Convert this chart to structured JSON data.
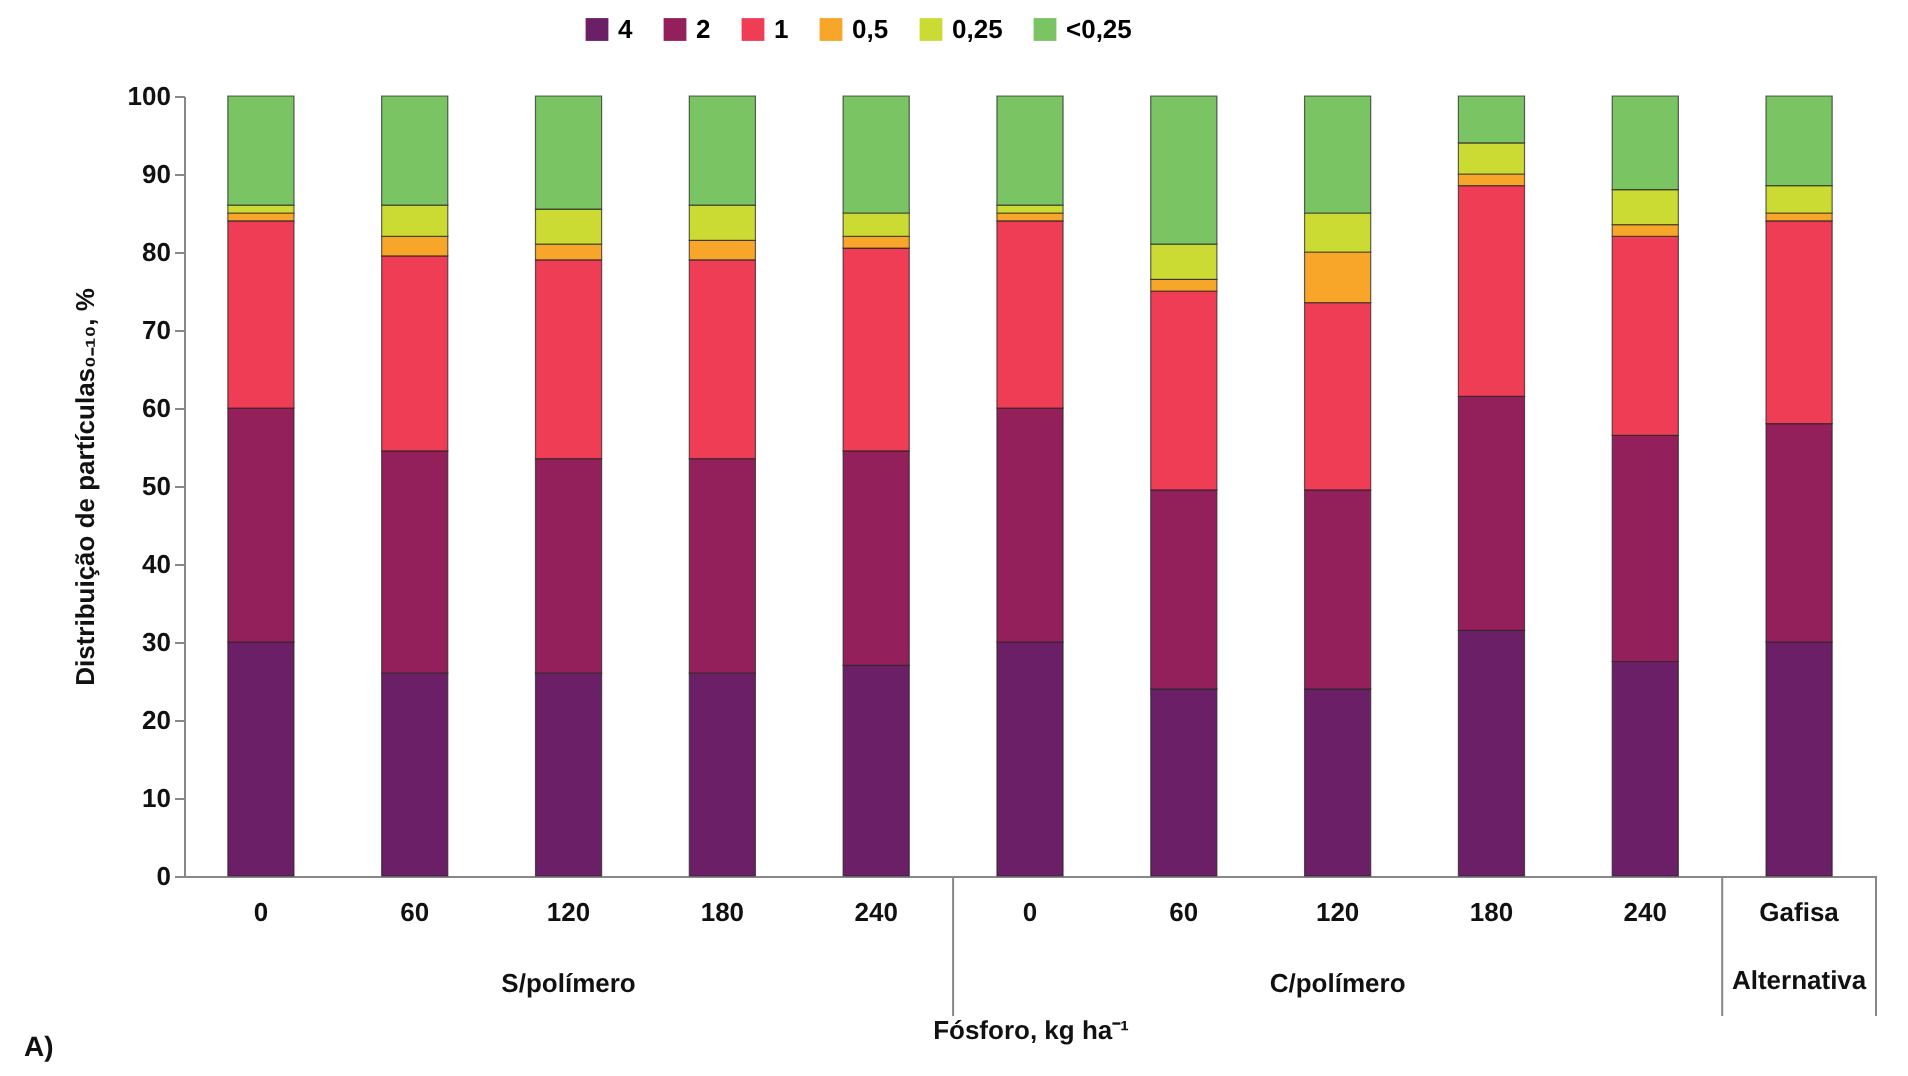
{
  "chart_data": {
    "type": "bar",
    "stacked": true,
    "xlabel": "Fósforo, kg ha⁻¹",
    "ylabel": "Distribuição de partículas₀₋₁₀, %",
    "categories": [
      "0",
      "60",
      "120",
      "180",
      "240",
      "0",
      "60",
      "120",
      "180",
      "240",
      "Gafisa Alternativa"
    ],
    "series": [
      {
        "name": "4",
        "color": "#6b1f66",
        "values": [
          30,
          26,
          26,
          26,
          27,
          30,
          24,
          24,
          31.5,
          27.5,
          30
        ]
      },
      {
        "name": "2",
        "color": "#93205a",
        "values": [
          30,
          28.5,
          27.5,
          27.5,
          27.5,
          30,
          25.5,
          25.5,
          30,
          29,
          28
        ]
      },
      {
        "name": "1",
        "color": "#ee3d55",
        "values": [
          24,
          25,
          25.5,
          25.5,
          26,
          24,
          25.5,
          24,
          27,
          25.5,
          26
        ]
      },
      {
        "name": "0,5",
        "color": "#f8a629",
        "values": [
          1,
          2.5,
          2,
          2.5,
          1.5,
          1,
          1.5,
          6.5,
          1.5,
          1.5,
          1
        ]
      },
      {
        "name": "0,25",
        "color": "#ccdb33",
        "values": [
          1,
          4,
          4.5,
          4.5,
          3,
          1,
          4.5,
          5,
          4,
          4.5,
          3.5
        ]
      },
      {
        "name": "<0,25",
        "color": "#7bc463",
        "values": [
          14,
          14,
          14.5,
          14,
          15,
          14,
          19,
          15,
          6,
          12,
          11.5
        ]
      }
    ],
    "ylim": [
      0,
      100
    ],
    "yticks": [
      0,
      10,
      20,
      30,
      40,
      50,
      60,
      70,
      80,
      90,
      100
    ],
    "grid": false,
    "legend": "top",
    "annotations": [
      "S/polímero",
      "C/polímero",
      "A)"
    ]
  }
}
